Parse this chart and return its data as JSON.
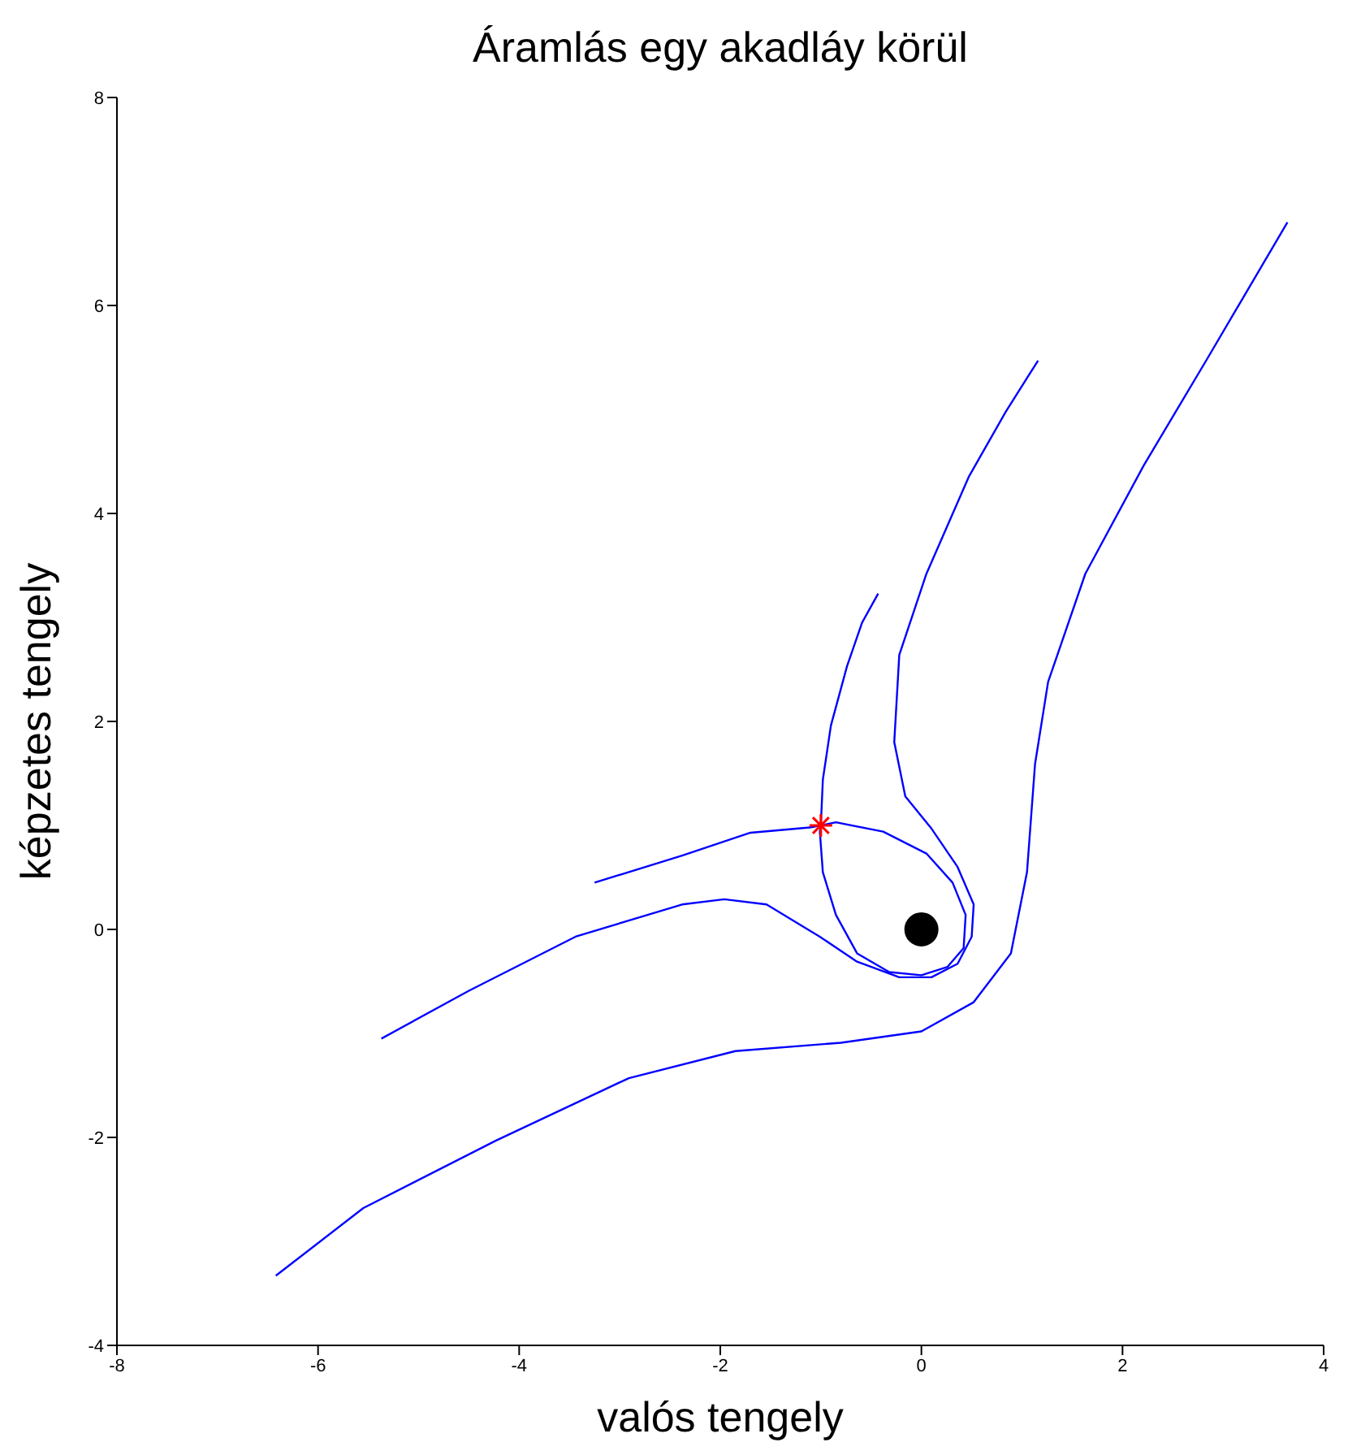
{
  "chart_data": {
    "type": "line",
    "title": "Áramlás egy akadláy körül",
    "xlabel": "valós tengely",
    "ylabel": "képzetes tengely",
    "xlim": [
      -8,
      4
    ],
    "xticks": [
      -8,
      -6,
      -4,
      -2,
      0,
      2,
      4
    ],
    "ylim": [
      -4,
      8
    ],
    "yticks": [
      -4,
      -2,
      0,
      2,
      4,
      6,
      8
    ],
    "line_style": "solid",
    "series": [
      {
        "color": "#0000ff",
        "x": [
          -3.25,
          -2.38,
          -1.7,
          -1.11,
          -1.0,
          -0.85,
          -0.38,
          0.05,
          0.31,
          0.44,
          0.42,
          0.26,
          0.0,
          -0.32,
          -0.64,
          -0.85,
          -0.98,
          -1.01,
          -1.0,
          -0.98,
          -0.9,
          -0.74,
          -0.59,
          -0.43
        ],
        "values": [
          0.45,
          0.71,
          0.93,
          0.98,
          1.0,
          1.03,
          0.94,
          0.73,
          0.45,
          0.14,
          -0.18,
          -0.36,
          -0.44,
          -0.41,
          -0.23,
          0.14,
          0.55,
          0.94,
          1.0,
          1.44,
          1.96,
          2.53,
          2.95,
          3.23
        ]
      },
      {
        "color": "#0000ff",
        "x": [
          -5.37,
          -4.5,
          -3.44,
          -2.38,
          -1.96,
          -1.54,
          -1.01,
          -0.64,
          -0.22,
          0.1,
          0.36,
          0.5,
          0.52,
          0.36,
          0.1,
          -0.16,
          -0.27,
          -0.22,
          0.05,
          0.47,
          0.84,
          1.16
        ],
        "values": [
          -1.05,
          -0.59,
          -0.07,
          0.24,
          0.29,
          0.24,
          -0.07,
          -0.31,
          -0.46,
          -0.46,
          -0.33,
          -0.07,
          0.24,
          0.6,
          0.97,
          1.28,
          1.8,
          2.64,
          3.42,
          4.35,
          4.98,
          5.47
        ]
      },
      {
        "color": "#0000ff",
        "x": [
          -6.42,
          -5.55,
          -4.23,
          -2.91,
          -1.85,
          -0.8,
          0.0,
          0.52,
          0.89,
          1.05,
          1.13,
          1.26,
          1.63,
          2.21,
          2.85,
          3.64
        ],
        "values": [
          -3.33,
          -2.68,
          -2.03,
          -1.43,
          -1.17,
          -1.09,
          -0.98,
          -0.7,
          -0.23,
          0.55,
          1.59,
          2.38,
          3.42,
          4.46,
          5.5,
          6.8
        ]
      },
      {
        "type": "scatter",
        "marker": "cross",
        "color": "#ff0000",
        "x": [
          -1
        ],
        "values": [
          1
        ]
      },
      {
        "type": "scatter",
        "marker": "circle",
        "color": "#000000",
        "x": [
          0
        ],
        "values": [
          0
        ]
      }
    ]
  }
}
